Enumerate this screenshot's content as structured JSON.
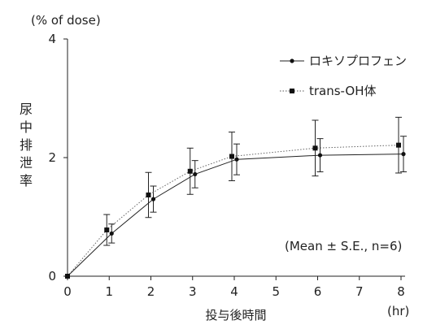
{
  "chart_data": {
    "type": "line",
    "y_unit_label": "(% of dose)",
    "ylabel": "尿中排泄率",
    "xlabel": "投与後時間",
    "x_unit_label": "(hr)",
    "annotation": "(Mean ± S.E., n=6)",
    "xlim": [
      0,
      8
    ],
    "ylim": [
      0,
      4
    ],
    "x_ticks": [
      0,
      1,
      2,
      3,
      4,
      5,
      6,
      7,
      8
    ],
    "y_ticks": [
      0,
      2,
      4
    ],
    "grid": false,
    "legend_position": "top-right",
    "series": [
      {
        "name": "ロキソプロフェン",
        "marker": "circle",
        "line_style": "solid",
        "color": "#222222",
        "x": [
          0,
          1,
          2,
          3,
          4,
          6,
          8
        ],
        "y": [
          0,
          0.72,
          1.3,
          1.72,
          1.97,
          2.04,
          2.06
        ],
        "err": [
          0,
          0.16,
          0.22,
          0.23,
          0.26,
          0.28,
          0.3
        ]
      },
      {
        "name": "trans-OH体",
        "marker": "square",
        "line_style": "dotted",
        "color": "#222222",
        "x": [
          0,
          1,
          2,
          3,
          4,
          6,
          8
        ],
        "y": [
          0,
          0.78,
          1.37,
          1.77,
          2.02,
          2.16,
          2.21
        ],
        "err": [
          0,
          0.26,
          0.38,
          0.39,
          0.41,
          0.47,
          0.47
        ]
      }
    ]
  }
}
